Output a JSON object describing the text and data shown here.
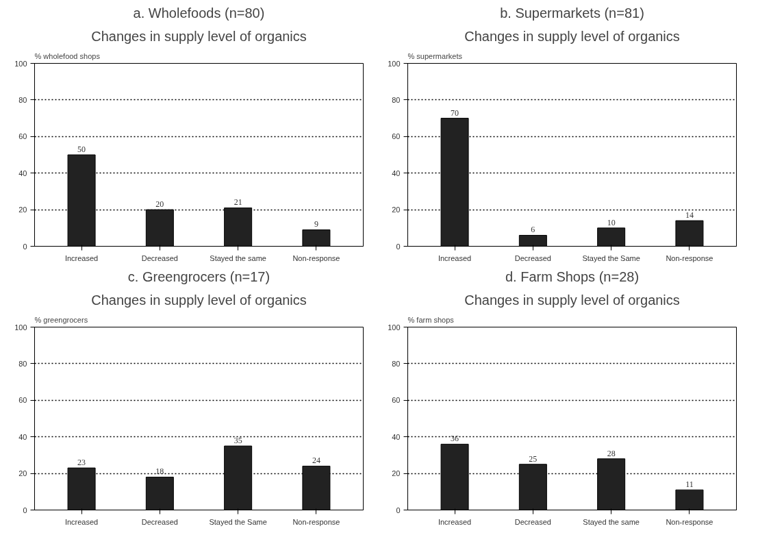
{
  "chart_data": [
    {
      "type": "bar",
      "title": "a. Wholefoods (n=80)",
      "subtitle": "Changes in supply level of organics",
      "ylabel": "% wholefood shops",
      "categories": [
        "Increased",
        "Decreased",
        "Stayed the same",
        "Non-response"
      ],
      "values": [
        50,
        20,
        21,
        9
      ],
      "color": "#222222",
      "ylim": [
        0,
        100
      ],
      "yticks": [
        0,
        20,
        40,
        60,
        80,
        100
      ],
      "grid": "y",
      "data_labels": true
    },
    {
      "type": "bar",
      "title": "b. Supermarkets (n=81)",
      "subtitle": "Changes in supply level of organics",
      "ylabel": "% supermarkets",
      "categories": [
        "Increased",
        "Decreased",
        "Stayed the Same",
        "Non-response"
      ],
      "values": [
        70,
        6,
        10,
        14
      ],
      "color": "#222222",
      "ylim": [
        0,
        100
      ],
      "yticks": [
        0,
        20,
        40,
        60,
        80,
        100
      ],
      "grid": "y",
      "data_labels": true
    },
    {
      "type": "bar",
      "title": "c. Greengrocers (n=17)",
      "subtitle": "Changes in supply level of organics",
      "ylabel": "% greengrocers",
      "categories": [
        "Increased",
        "Decreased",
        "Stayed the Same",
        "Non-response"
      ],
      "values": [
        23,
        18,
        35,
        24
      ],
      "color": "#222222",
      "ylim": [
        0,
        100
      ],
      "yticks": [
        0,
        20,
        40,
        60,
        80,
        100
      ],
      "grid": "y",
      "data_labels": true
    },
    {
      "type": "bar",
      "title": "d. Farm Shops (n=28)",
      "subtitle": "Changes in supply level of organics",
      "ylabel": "% farm shops",
      "categories": [
        "Increased",
        "Decreased",
        "Stayed the same",
        "Non-response"
      ],
      "values": [
        36,
        25,
        28,
        11
      ],
      "color": "#222222",
      "ylim": [
        0,
        100
      ],
      "yticks": [
        0,
        20,
        40,
        60,
        80,
        100
      ],
      "grid": "y",
      "data_labels": true
    }
  ]
}
